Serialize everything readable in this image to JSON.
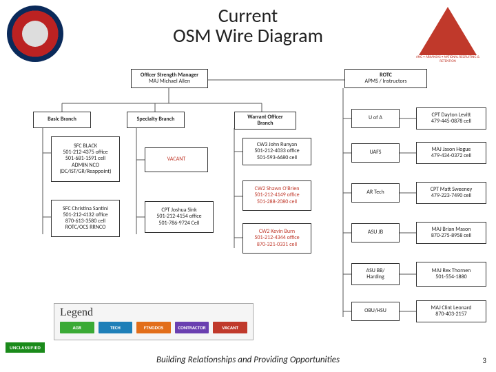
{
  "title_line1": "Current",
  "title_line2": "OSM Wire Diagram",
  "classification": "UNCLASSIFIED",
  "footer": "Building Relationships and Providing Opportunities",
  "page_number": "3",
  "badge_right": "ANG • ARKANSAS • NATIONAL\nRECRUITING & RETENTION",
  "top": {
    "osm_hdr": "Officer Strength Manager",
    "osm_name": "MAJ Michael Allen",
    "rotc_hdr": "ROTC",
    "rotc_sub": "APMS / Instructors"
  },
  "branches": {
    "basic": "Basic Branch",
    "specialty": "Specialty Branch",
    "warrant": "Warrant Officer\nBranch"
  },
  "left_col": {
    "a": "SFC BLACK\n501-212-4375 office\n501-681-1591 cell\nADMIN NCO\n(DC/IST/GR/Reappoint)",
    "b": "SFC Christina Santini\n501-212-4132 office\n870-613-3580 cell\nROTC/OCS RRNCO"
  },
  "mid_col": {
    "a": "VACANT",
    "b": "CPT Joshua Sink\n501-212-4154 office\n501-786-9724 Cell"
  },
  "warrant_col": {
    "a": "CW3 John Runyan\n501-212-4033 office\n501-593-6680 cell",
    "b": "CW2 Shawn O'Brien\n501-212-4149 office\n501-288-2080 cell",
    "c": "CW2 Kevin Burn\n501-212-4344 office\n870-321-0331 cell"
  },
  "rotc_schools": {
    "a": "U of A",
    "b": "UAFS",
    "c": "AR Tech",
    "d": "ASU JB",
    "e": "ASU BB/\nHarding",
    "f": "OBU/HSU"
  },
  "rotc_people": {
    "a": "CPT Dayton Levitt\n479-445-0878 cell",
    "b": "MAJ Jason Hogue\n479-434-0372 cell",
    "c": "CPT Matt Sweeney\n479-223-7490 cell",
    "d": "MAJ Brian Mason\n870-275-8958 cell",
    "e": "MAJ Rex Thornen\n501-554-1880",
    "f": "MAJ Clint Leonard\n870-403-2157"
  },
  "legend": {
    "title": "Legend",
    "items": [
      {
        "label": "AGR",
        "color": "#3aaa35"
      },
      {
        "label": "TECH",
        "color": "#1e7fb8"
      },
      {
        "label": "FTNGDOS",
        "color": "#e26e1a"
      },
      {
        "label": "CONTRACTOR",
        "color": "#6a3fb0"
      },
      {
        "label": "VACANT",
        "color": "#c0392b"
      }
    ]
  },
  "layout": {
    "colors": {
      "text_red": "#c0392b",
      "line": "#555555",
      "box_border": "#333333",
      "bg": "#ffffff"
    }
  }
}
